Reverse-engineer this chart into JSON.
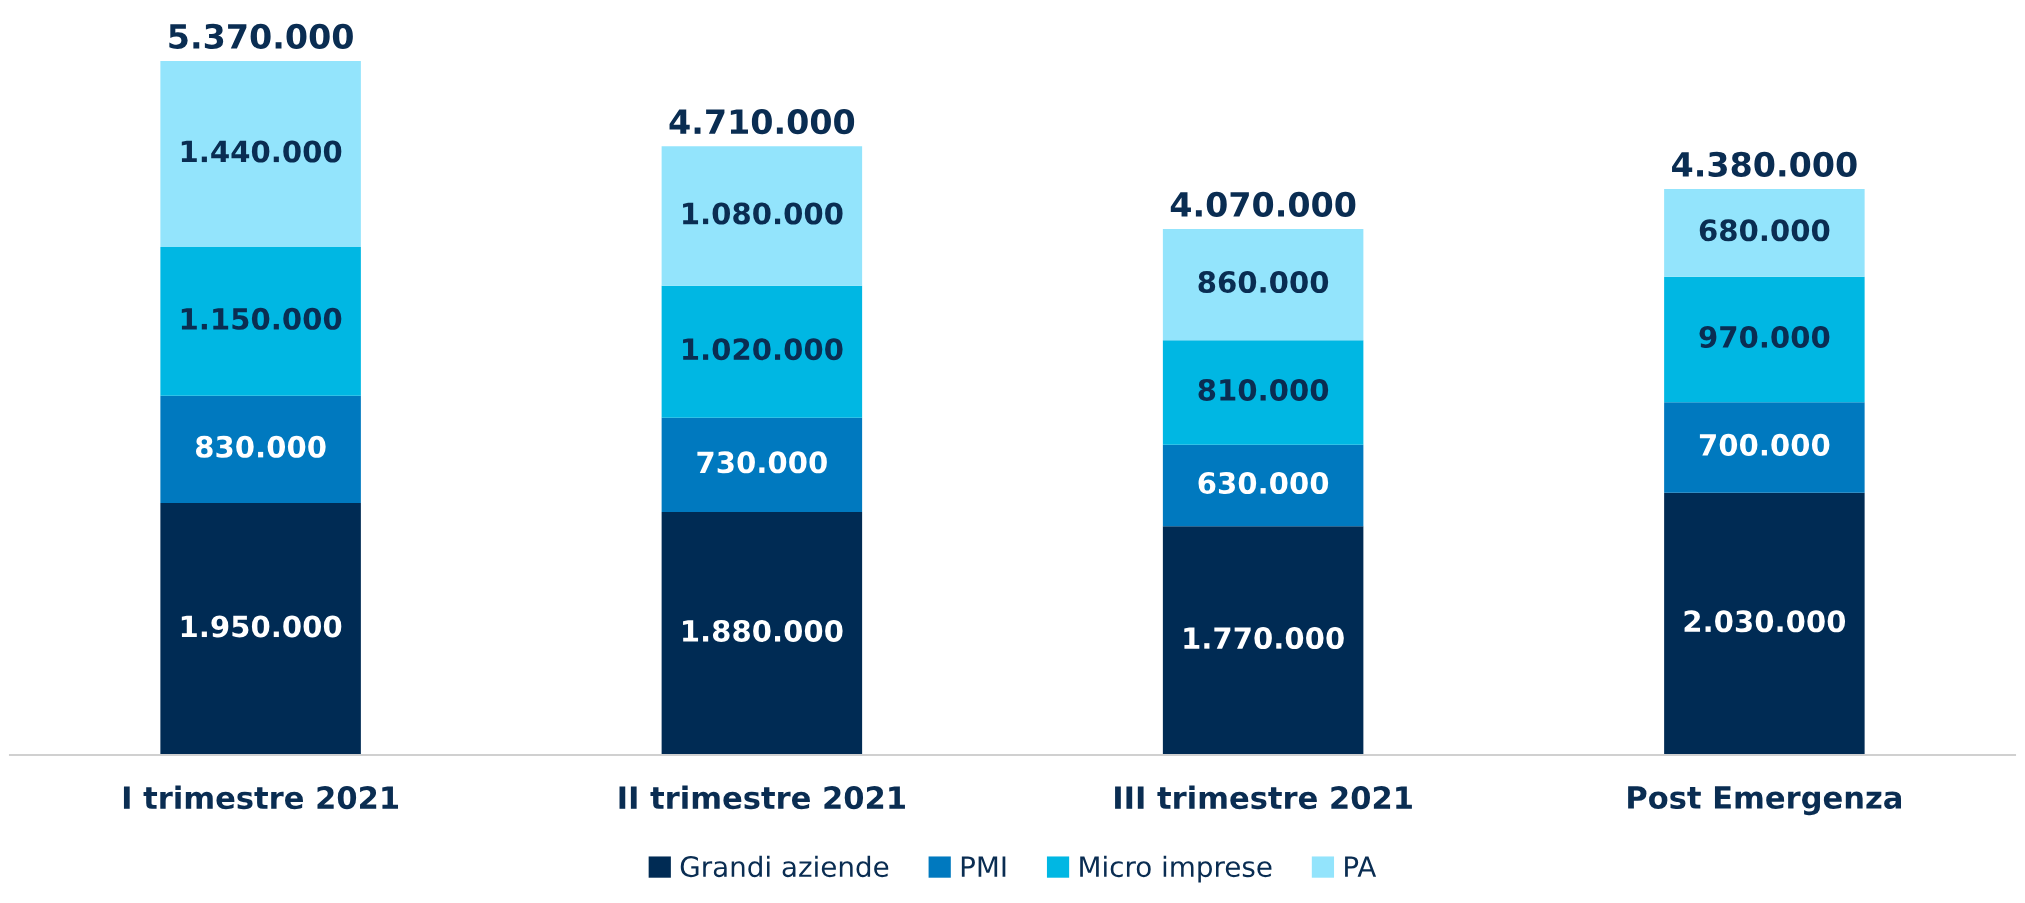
{
  "chart_data": {
    "type": "bar",
    "stacked": true,
    "categories": [
      "I trimestre 2021",
      "II trimestre 2021",
      "III trimestre 2021",
      "Post Emergenza"
    ],
    "series": [
      {
        "name": "Grandi aziende",
        "color": "#002b54",
        "values": [
          1950000,
          1880000,
          1770000,
          2030000
        ],
        "value_labels": [
          "1.950.000",
          "1.880.000",
          "1.770.000",
          "2.030.000"
        ]
      },
      {
        "name": "PMI",
        "color": "#0079bf",
        "values": [
          830000,
          730000,
          630000,
          700000
        ],
        "value_labels": [
          "830.000",
          "730.000",
          "630.000",
          "700.000"
        ]
      },
      {
        "name": "Micro imprese",
        "color": "#00b7e3",
        "values": [
          1150000,
          1020000,
          810000,
          970000
        ],
        "value_labels": [
          "1.150.000",
          "1.020.000",
          "810.000",
          "970.000"
        ]
      },
      {
        "name": "PA",
        "color": "#93e4fc",
        "values": [
          1440000,
          1080000,
          860000,
          680000
        ],
        "value_labels": [
          "1.440.000",
          "1.080.000",
          "860.000",
          "680.000"
        ]
      }
    ],
    "totals": [
      "5.370.000",
      "4.710.000",
      "4.070.000",
      "4.380.000"
    ],
    "grid": false,
    "legend": "bottom"
  }
}
